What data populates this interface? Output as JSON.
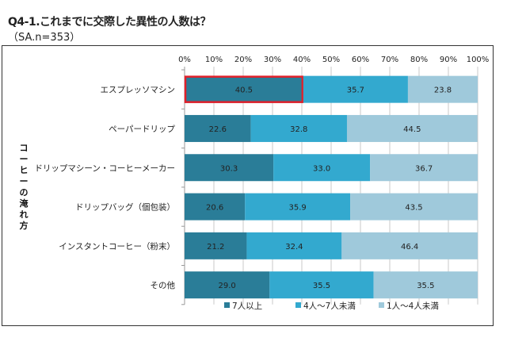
{
  "title": "Q4-1.これまでに交際した異性の人数は？",
  "subtitle": "（SA.n=353）",
  "chart_data": {
    "type": "bar",
    "orientation": "horizontal",
    "stacked": "100%",
    "ylabel": "コーヒーの淹れ方",
    "xlim": [
      0,
      100
    ],
    "x_ticks": [
      "0%",
      "10%",
      "20%",
      "30%",
      "40%",
      "50%",
      "60%",
      "70%",
      "80%",
      "90%",
      "100%"
    ],
    "categories": [
      "エスプレッソマシン",
      "ペーパードリップ",
      "ドリップマシーン・コーヒーメーカー",
      "ドリップバッグ（個包装）",
      "インスタントコーヒー（粉末）",
      "その他"
    ],
    "series": [
      {
        "name": "7人以上",
        "color": "#2a7d98",
        "values": [
          40.5,
          22.6,
          30.3,
          20.6,
          21.2,
          29.0
        ]
      },
      {
        "name": "4人～7人未満",
        "color": "#33a9cf",
        "values": [
          35.7,
          32.8,
          33.0,
          35.9,
          32.4,
          35.5
        ]
      },
      {
        "name": "1人～4人未満",
        "color": "#9fc9db",
        "values": [
          23.8,
          44.5,
          36.7,
          43.5,
          46.4,
          35.5
        ]
      }
    ],
    "highlight": {
      "category": "エスプレッソマシン",
      "series": "7人以上",
      "color": "#e0202a"
    },
    "legend_position": "bottom",
    "grid": true
  }
}
